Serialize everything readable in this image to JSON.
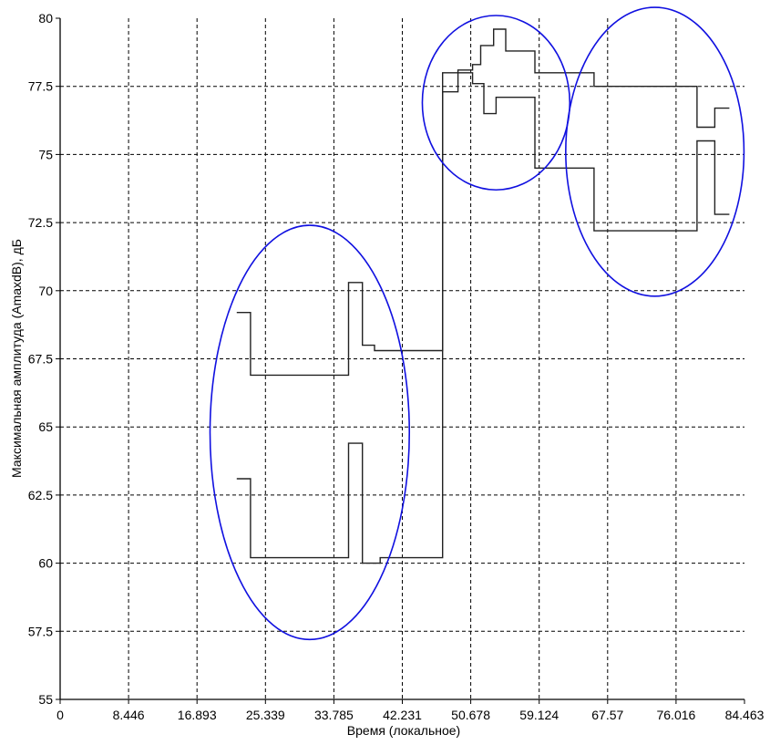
{
  "chart_data": {
    "type": "line",
    "title": "",
    "xlabel": "Время (локальное)",
    "ylabel": "Максимальная амплитуда (AmaxdB), дБ",
    "xlim": [
      0,
      84.463
    ],
    "ylim": [
      55,
      80
    ],
    "x_ticks": [
      "0",
      "8.446",
      "16.893",
      "25.339",
      "33.785",
      "42.231",
      "50.678",
      "59.124",
      "67.57",
      "76.016",
      "84.463"
    ],
    "y_ticks": [
      "55",
      "57.5",
      "60",
      "62.5",
      "65",
      "67.5",
      "70",
      "72.5",
      "75",
      "77.5",
      "80"
    ],
    "grid": true,
    "series": [
      {
        "values": [
          [
            21.8,
            69.2
          ],
          [
            23.5,
            69.2
          ],
          [
            23.5,
            66.9
          ],
          [
            35.6,
            66.9
          ],
          [
            35.6,
            70.3
          ],
          [
            37.3,
            70.3
          ],
          [
            37.3,
            68.0
          ],
          [
            38.8,
            68.0
          ],
          [
            38.8,
            67.8
          ],
          [
            47.2,
            67.8
          ],
          [
            47.2,
            78.0
          ],
          [
            49.1,
            78.0
          ],
          [
            49.1,
            78.1
          ],
          [
            50.9,
            78.1
          ],
          [
            50.9,
            78.3
          ],
          [
            51.9,
            78.3
          ],
          [
            51.9,
            79.0
          ],
          [
            53.5,
            79.0
          ],
          [
            53.5,
            79.6
          ],
          [
            55.0,
            79.6
          ],
          [
            55.0,
            78.8
          ],
          [
            58.6,
            78.8
          ],
          [
            58.6,
            78.0
          ],
          [
            65.9,
            78.0
          ],
          [
            65.9,
            77.5
          ],
          [
            78.6,
            77.5
          ],
          [
            78.6,
            76.0
          ],
          [
            80.8,
            76.0
          ],
          [
            80.8,
            76.7
          ],
          [
            82.6,
            76.7
          ]
        ]
      },
      {
        "values": [
          [
            21.8,
            63.1
          ],
          [
            23.5,
            63.1
          ],
          [
            23.5,
            60.2
          ],
          [
            35.6,
            60.2
          ],
          [
            35.6,
            64.4
          ],
          [
            37.3,
            64.4
          ],
          [
            37.3,
            60.0
          ],
          [
            39.5,
            60.0
          ],
          [
            39.5,
            60.2
          ],
          [
            47.2,
            60.2
          ],
          [
            47.2,
            77.3
          ],
          [
            49.1,
            77.3
          ],
          [
            49.1,
            78.0
          ],
          [
            50.9,
            78.0
          ],
          [
            50.9,
            77.6
          ],
          [
            52.3,
            77.6
          ],
          [
            52.3,
            76.5
          ],
          [
            53.8,
            76.5
          ],
          [
            53.8,
            77.1
          ],
          [
            58.6,
            77.1
          ],
          [
            58.6,
            74.5
          ],
          [
            65.9,
            74.5
          ],
          [
            65.9,
            72.2
          ],
          [
            78.6,
            72.2
          ],
          [
            78.6,
            75.5
          ],
          [
            80.8,
            75.5
          ],
          [
            80.8,
            72.8
          ],
          [
            82.6,
            72.8
          ]
        ]
      }
    ],
    "annotations": [
      {
        "type": "ellipse",
        "color": "#1010e0",
        "cx": 30.8,
        "cy": 64.8,
        "rx": 12.3,
        "ry": 7.6
      },
      {
        "type": "ellipse",
        "color": "#1010e0",
        "cx": 53.8,
        "cy": 76.9,
        "rx": 9.1,
        "ry": 3.2
      },
      {
        "type": "ellipse",
        "color": "#1010e0",
        "cx": 73.4,
        "cy": 75.1,
        "rx": 11.0,
        "ry": 5.3
      }
    ]
  }
}
